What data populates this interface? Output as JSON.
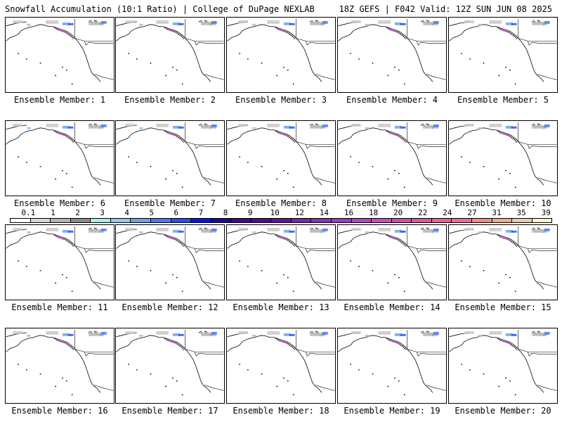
{
  "header": {
    "left": "Snowfall Accumulation (10:1 Ratio) | College of DuPage NEXLAB",
    "right": "18Z GEFS | F042 Valid: 12Z SUN JUN 08 2025"
  },
  "panels": [
    {
      "label": "Ensemble Member: 1"
    },
    {
      "label": "Ensemble Member: 2"
    },
    {
      "label": "Ensemble Member: 3"
    },
    {
      "label": "Ensemble Member: 4"
    },
    {
      "label": "Ensemble Member: 5"
    },
    {
      "label": "Ensemble Member: 6"
    },
    {
      "label": "Ensemble Member: 7"
    },
    {
      "label": "Ensemble Member: 8"
    },
    {
      "label": "Ensemble Member: 9"
    },
    {
      "label": "Ensemble Member: 10"
    },
    {
      "label": "Ensemble Member: 11"
    },
    {
      "label": "Ensemble Member: 12"
    },
    {
      "label": "Ensemble Member: 13"
    },
    {
      "label": "Ensemble Member: 14"
    },
    {
      "label": "Ensemble Member: 15"
    },
    {
      "label": "Ensemble Member: 16"
    },
    {
      "label": "Ensemble Member: 17"
    },
    {
      "label": "Ensemble Member: 18"
    },
    {
      "label": "Ensemble Member: 19"
    },
    {
      "label": "Ensemble Member: 20"
    }
  ],
  "colorbar": {
    "ticks": [
      "0.1",
      "1",
      "2",
      "3",
      "4",
      "5",
      "6",
      "7",
      "8",
      "9",
      "10",
      "12",
      "14",
      "16",
      "18",
      "20",
      "22",
      "24",
      "27",
      "31",
      "35",
      "39"
    ],
    "colors": [
      "#ffffff",
      "#d8d8d8",
      "#b4b4b4",
      "#8c8c8c",
      "#a0f0f0",
      "#96c8f0",
      "#6ea0f0",
      "#4b78f0",
      "#2850f0",
      "#0a14f0",
      "#1e0a96",
      "#3c0a8c",
      "#550a96",
      "#6414a0",
      "#7828aa",
      "#8c32b4",
      "#a03cbe",
      "#b446c8",
      "#c850be",
      "#d250aa",
      "#dc5a9b",
      "#e66496",
      "#f06e8c",
      "#f08c82",
      "#f0aa8c",
      "#f0c8aa",
      "#faf0d2"
    ]
  }
}
